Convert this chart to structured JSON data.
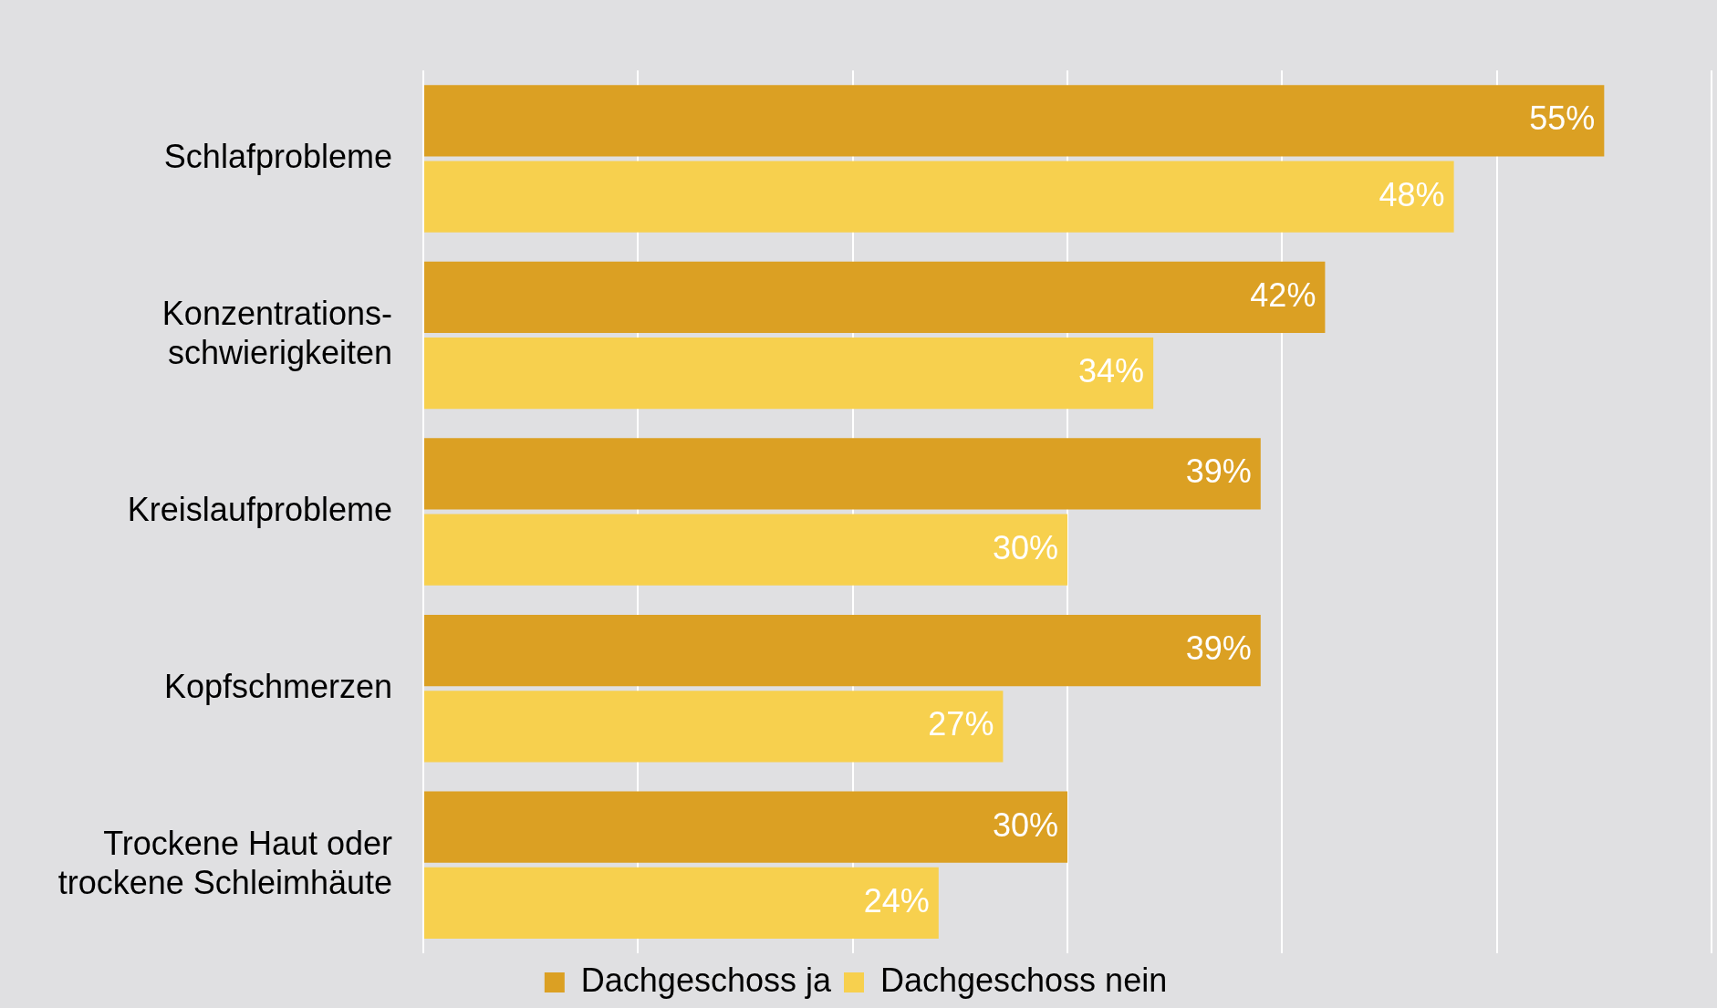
{
  "chart_data": {
    "type": "bar",
    "orientation": "horizontal",
    "categories": [
      "Schlafprobleme",
      "Konzentrations-\nschwierigkeiten",
      "Kreislaufprobleme",
      "Kopfschmerzen",
      "Trockene Haut oder\ntrockene Schleimhäute"
    ],
    "series": [
      {
        "name": "Dachgeschoss ja",
        "color": "#dba023",
        "values": [
          55,
          42,
          39,
          39,
          30
        ],
        "value_labels": [
          "55%",
          "42%",
          "39%",
          "39%",
          "30%"
        ]
      },
      {
        "name": "Dachgeschoss nein",
        "color": "#f7d04e",
        "values": [
          48,
          34,
          30,
          27,
          24
        ],
        "value_labels": [
          "48%",
          "34%",
          "30%",
          "27%",
          "24%"
        ]
      }
    ],
    "tick_labels": "y",
    "grid": "x",
    "legend": "bottom"
  }
}
